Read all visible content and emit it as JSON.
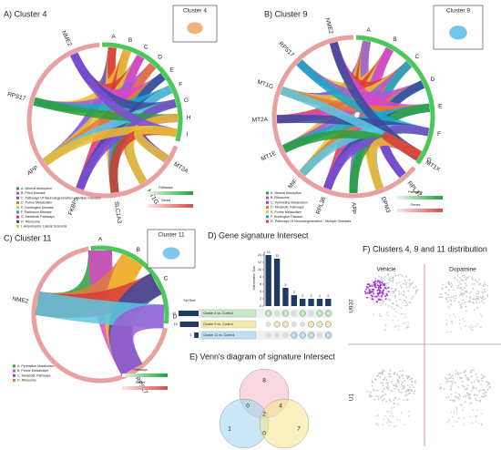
{
  "panels": [
    {
      "title": "A) Cluster 4",
      "inset": "Cluster 4",
      "sectors": [
        "A",
        "B",
        "C",
        "D",
        "E",
        "F",
        "G",
        "H",
        "I"
      ],
      "genes": [
        "NME2",
        "RPS17",
        "APP",
        "FKBP5",
        "SLC1A3",
        "MT1G",
        "MT2A"
      ],
      "legend": [
        "A. Mineral Absorption",
        "B. Prion Disease",
        "C. Pathways Of Neurodegeneration - Multiple Diseases",
        "D. Purine Metabolism",
        "E. Huntington Disease",
        "F. Parkinson Disease",
        "G. Metabolic Pathways",
        "H. Ribosome",
        "I. Amyotrophic Lateral Sclerosis"
      ],
      "scale": [
        "Pathways",
        "Genes"
      ]
    },
    {
      "title": "B) Cluster 9",
      "inset": "Cluster 9",
      "sectors": [
        "A",
        "B",
        "C",
        "D",
        "E",
        "F",
        "G"
      ],
      "genes": [
        "NME2",
        "RPS17",
        "MT1G",
        "MT2A",
        "MT1E",
        "MIF",
        "RPL36",
        "APP",
        "DPM3",
        "RPL37",
        "MT1X"
      ],
      "legend": [
        "A. Mineral Absorption",
        "B. Ribosome",
        "C. Pyrimidine Metabolism",
        "D. Metabolic Pathways",
        "E. Purine Metabolism",
        "F. Huntington Disease",
        "G. Pathways Of Neurodegeneration - Multiple Diseases"
      ],
      "scale": [
        "Pathways",
        "Genes"
      ]
    },
    {
      "title": "C) Cluster 11",
      "inset": "Cluster 11",
      "sectors": [
        "A",
        "B",
        "C",
        "D"
      ],
      "genes": [
        "NME2",
        "RPS17"
      ],
      "legend": [
        "A. Pyrimidine Metabolism",
        "B. Purine Metabolism",
        "C. Metabolic Pathways",
        "D. Ribosome"
      ],
      "scale": [
        "Pathways",
        "Genes"
      ]
    }
  ],
  "upset": {
    "title": "D) Gene signature Intersect",
    "y_label": "Intersection Size",
    "values": [
      14,
      13,
      5,
      3,
      2,
      2,
      2,
      2
    ],
    "ylim": [
      0,
      15
    ],
    "yticks": [
      0,
      2,
      4,
      6,
      8,
      10,
      12,
      14
    ],
    "set_label": "Set Size",
    "sets": [
      "Cluster 4 vs. Control",
      "Cluster 9 vs. Control",
      "Cluster 11 vs. Control"
    ],
    "set_sizes": [
      14,
      13,
      3
    ],
    "color": "#1f3b63"
  },
  "venn": {
    "title": "E) Venn's diagram of signature Intersect",
    "values": [
      8,
      0,
      4,
      2,
      1,
      0,
      7
    ]
  },
  "umap": {
    "title": "F) Clusters 4, 9 and 11 distribution",
    "columns": [
      "Vehicle",
      "Dopamine"
    ],
    "rows": [
      "U937",
      "U1"
    ]
  }
}
